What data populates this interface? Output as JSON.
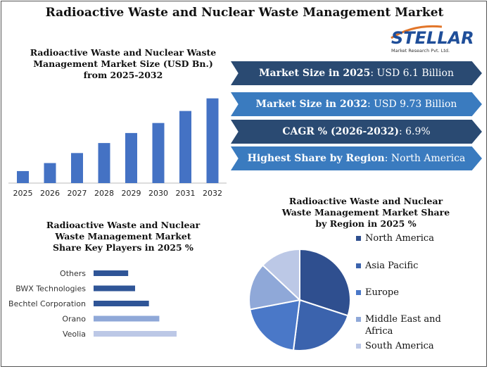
{
  "title": "Radioactive Waste and Nuclear Waste Management Market",
  "logo": {
    "brand": "STELLAR",
    "tagline": "Market Research Pvt. Ltd."
  },
  "colors": {
    "bar": "#4472c4",
    "banner_dark": "#2a4a72",
    "banner_light": "#3a7bbf",
    "pie": [
      "#2f4f8f",
      "#3b63ad",
      "#4a78c8",
      "#8fa8d8",
      "#bcc8e6"
    ],
    "hbar": [
      "#2f5597",
      "#2f5597",
      "#2f5597",
      "#8fa8d8",
      "#bcc8e6"
    ]
  },
  "banners": [
    {
      "label": "Market Size in 2025",
      "value": ": USD 6.1 Billion"
    },
    {
      "label": "Market Size in 2032",
      "value": ": USD 9.73 Billion"
    },
    {
      "label": "CAGR % (2026-2032)",
      "value": ": 6.9%"
    },
    {
      "label": "Highest Share by Region",
      "value": ": North America"
    }
  ],
  "chart_data": [
    {
      "type": "bar",
      "title": "Radioactive Waste and Nuclear Waste Management Market Size (USD Bn.) from 2025-2032",
      "categories": [
        "2025",
        "2026",
        "2027",
        "2028",
        "2029",
        "2030",
        "2031",
        "2032"
      ],
      "values": [
        6.1,
        6.5,
        7.0,
        7.5,
        8.0,
        8.5,
        9.1,
        9.73
      ],
      "ylim": [
        5.5,
        10.0
      ]
    },
    {
      "type": "bar",
      "orientation": "horizontal",
      "title": "Radioactive Waste and Nuclear Waste Management Market Share Key Players in 2025 %",
      "categories": [
        "Others",
        "BWX Technologies",
        "Bechtel Corporation",
        "Orano",
        "Veolia"
      ],
      "values": [
        10,
        12,
        16,
        19,
        24
      ],
      "xlim": [
        0,
        30
      ]
    },
    {
      "type": "pie",
      "title": "Radioactive Waste and Nuclear Waste Management Market Share by Region in 2025 %",
      "labels": [
        "North America",
        "Asia Pacific",
        "Europe",
        "Middle East and Africa",
        "South America"
      ],
      "values": [
        30,
        22,
        20,
        15,
        13
      ]
    }
  ]
}
